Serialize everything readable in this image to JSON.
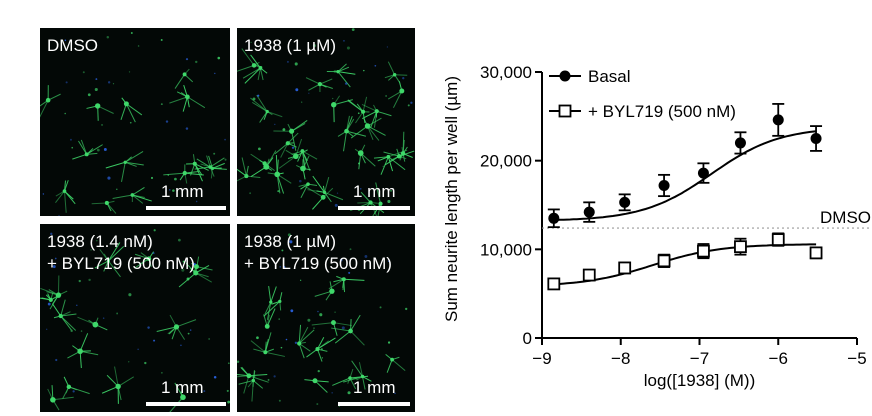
{
  "panels": [
    {
      "id": "dmso",
      "label_lines": [
        "DMSO"
      ],
      "scale_label": "1 mm"
    },
    {
      "id": "1938-1um",
      "label_lines": [
        "1938 (1 µM)"
      ],
      "scale_label": "1 mm"
    },
    {
      "id": "1938-1.4nm-byl",
      "label_lines": [
        "1938 (1.4 nM)",
        "+ BYL719 (500 nM)"
      ],
      "scale_label": "1 mm"
    },
    {
      "id": "1938-1um-byl",
      "label_lines": [
        "1938 (1 µM)",
        "+ BYL719 (500 nM)"
      ],
      "scale_label": "1 mm"
    }
  ],
  "colors": {
    "panel_bg": "#030806",
    "neurite": "#3fd86a",
    "nucleus": "#2f6fff",
    "line": "#000000"
  },
  "chart_data": {
    "type": "line",
    "title": "",
    "xlabel": "log([1938] (M))",
    "ylabel": "Sum neurite length per well (µm)",
    "xlim": [
      -9,
      -5
    ],
    "ylim": [
      0,
      30000
    ],
    "x_ticks": [
      -9,
      -8,
      -7,
      -6,
      -5
    ],
    "x_tick_labels": [
      "−9",
      "−8",
      "−7",
      "−6",
      "−5"
    ],
    "y_ticks": [
      0,
      10000,
      20000,
      30000
    ],
    "y_tick_labels": [
      "0",
      "10,000",
      "20,000",
      "30,000"
    ],
    "legend_position": "top-left",
    "reference_line": {
      "label": "DMSO",
      "y": 12400
    },
    "series": [
      {
        "name": "Basal",
        "marker": "filled-circle",
        "x": [
          -8.85,
          -8.4,
          -7.95,
          -7.45,
          -6.95,
          -6.48,
          -6.0,
          -5.52
        ],
        "y": [
          13500,
          14200,
          15300,
          17200,
          18600,
          22000,
          24600,
          22500
        ],
        "err": [
          1000,
          1100,
          900,
          1200,
          1100,
          1200,
          1800,
          1400
        ],
        "fit": {
          "bottom": 13200,
          "top": 23800,
          "log_ec50": -6.85,
          "hill": 1.0
        }
      },
      {
        "name": "+ BYL719 (500 nM)",
        "marker": "open-square",
        "x": [
          -8.85,
          -8.4,
          -7.95,
          -7.45,
          -6.95,
          -6.48,
          -6.0,
          -5.52
        ],
        "y": [
          6100,
          7100,
          7900,
          8700,
          9800,
          10300,
          11100,
          9600
        ],
        "err": [
          300,
          400,
          600,
          700,
          800,
          900,
          700,
          600
        ],
        "fit": {
          "bottom": 5800,
          "top": 10600,
          "log_ec50": -7.6,
          "hill": 1.0
        }
      }
    ]
  }
}
